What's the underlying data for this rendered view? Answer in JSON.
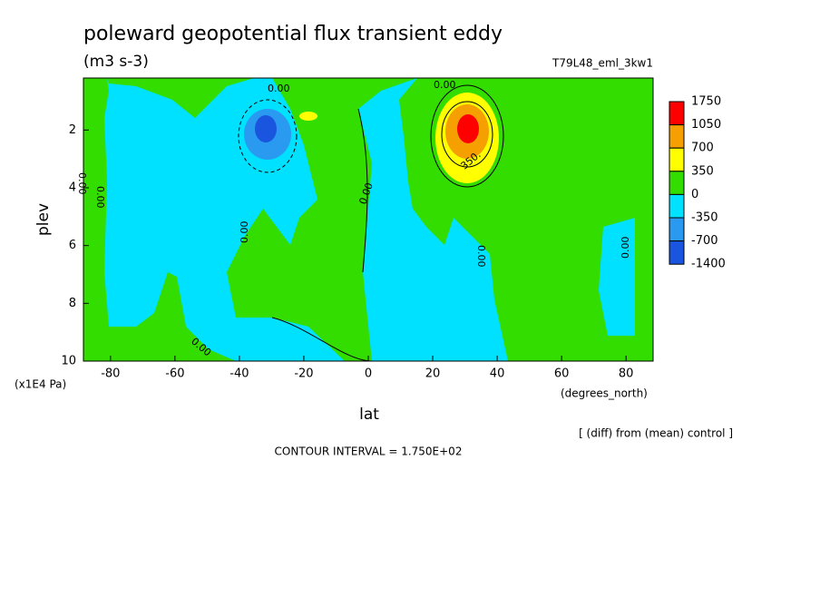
{
  "chart_data": {
    "type": "contour",
    "title": "poleward geopotential flux transient eddy",
    "subtitle": "(m3 s-3)",
    "dataset": "T79L48_eml_3kw1",
    "x_label": "lat",
    "x_units": "(degrees_north)",
    "y_label": "plev",
    "y_units": "(x1E4 Pa)",
    "footnote": "[ (diff) from (mean) control ]",
    "contour_interval": "CONTOUR INTERVAL = 1.750E+02",
    "xlim": [
      -88.4,
      88.4
    ],
    "xticks": [
      -80,
      -60,
      -40,
      -20,
      0,
      20,
      40,
      60,
      80
    ],
    "ylim": [
      10,
      0.2
    ],
    "yticks": [
      2,
      4,
      6,
      8,
      10
    ],
    "levels": [
      1750,
      1050,
      700,
      350,
      0,
      -350,
      -700,
      -1400
    ],
    "colors": [
      "#ff0000",
      "#f5a000",
      "#ffff00",
      "#33dd00",
      "#00e0ff",
      "#2a9af0",
      "#1a55e0"
    ],
    "contour_labels": [
      "0.00",
      "0.00",
      "0.00",
      "0.00",
      "0.00",
      "0.00",
      "0.00",
      "0.00",
      "0.00",
      "350."
    ]
  }
}
